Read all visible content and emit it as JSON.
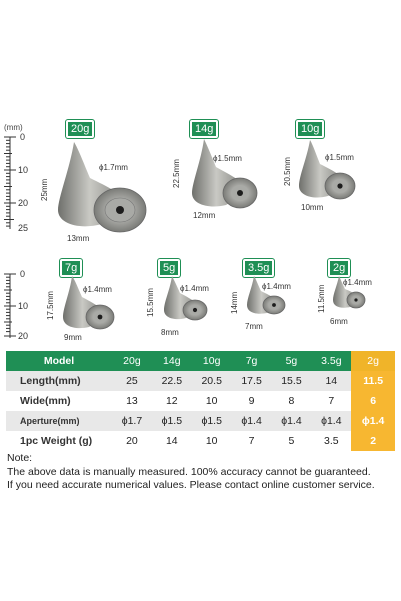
{
  "ruler_unit": "(mm)",
  "ruler_top_ticks": [
    "0",
    "10",
    "20",
    "25"
  ],
  "ruler_bottom_ticks": [
    "0",
    "10",
    "20"
  ],
  "products": [
    {
      "weight": "20g",
      "length_label": "25mm",
      "width_label": "13mm",
      "aperture_label": "ϕ1.7mm"
    },
    {
      "weight": "14g",
      "length_label": "22.5mm",
      "width_label": "12mm",
      "aperture_label": "ϕ1.5mm"
    },
    {
      "weight": "10g",
      "length_label": "20.5mm",
      "width_label": "10mm",
      "aperture_label": "ϕ1.5mm"
    },
    {
      "weight": "7g",
      "length_label": "17.5mm",
      "width_label": "9mm",
      "aperture_label": "ϕ1.4mm"
    },
    {
      "weight": "5g",
      "length_label": "15.5mm",
      "width_label": "8mm",
      "aperture_label": "ϕ1.4mm"
    },
    {
      "weight": "3.5g",
      "length_label": "14mm",
      "width_label": "7mm",
      "aperture_label": "ϕ1.4mm"
    },
    {
      "weight": "2g",
      "length_label": "11.5mm",
      "width_label": "6mm",
      "aperture_label": "ϕ1.4mm"
    }
  ],
  "table": {
    "header": [
      "Model",
      "20g",
      "14g",
      "10g",
      "7g",
      "5g",
      "3.5g",
      "2g"
    ],
    "rows": [
      [
        "Length(mm)",
        "25",
        "22.5",
        "20.5",
        "17.5",
        "15.5",
        "14",
        "11.5"
      ],
      [
        "Wide(mm)",
        "13",
        "12",
        "10",
        "9",
        "8",
        "7",
        "6"
      ],
      [
        "Aperture(mm)",
        "ϕ1.7",
        "ϕ1.5",
        "ϕ1.5",
        "ϕ1.4",
        "ϕ1.4",
        "ϕ1.4",
        "ϕ1.4"
      ],
      [
        "1pc Weight (g)",
        "20",
        "14",
        "10",
        "7",
        "5",
        "3.5",
        "2"
      ]
    ]
  },
  "note": {
    "title": "Note:",
    "line1": "The above data is manually measured. 100% accuracy cannot be guaranteed.",
    "line2": "If you need accurate numerical values. Please contact online customer service."
  },
  "colors": {
    "green": "#1f8f55",
    "highlight": "#f7b731",
    "metal": "#9a9a96"
  }
}
